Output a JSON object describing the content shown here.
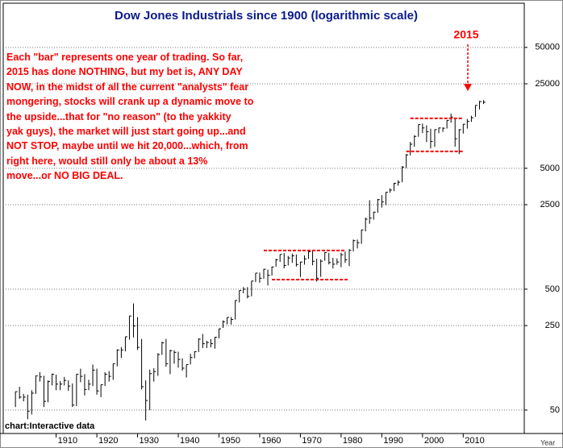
{
  "chart_data": {
    "type": "hlc",
    "title": "Dow Jones Industrials since 1900 (logarithmic scale)",
    "annotation": [
      "Each \"bar\" represents one year of trading. So far,",
      "2015 has done NOTHING, but my bet is, ANY DAY",
      "NOW, in the midst of all the current \"analysts\" fear",
      "mongering, stocks will crank up a dynamic move to",
      "the upside...that for \"no reason\" (to the yakkity",
      "yak guys), the market will just start going up...and",
      "NOT STOP, maybe until we hit 20,000...which, from",
      "right here, would still only be about a 13%",
      "move...or NO BIG DEAL."
    ],
    "arrow_label": "2015",
    "source": "chart:Interactive data",
    "x_label": "Year",
    "log_scale": true,
    "color": "#000000",
    "reference_color": "#ff0000",
    "xlim": [
      1897,
      2025
    ],
    "xticks": [
      1910,
      1920,
      1930,
      1940,
      1950,
      1960,
      1970,
      1980,
      1990,
      2000,
      2010
    ],
    "ylim": [
      32,
      116000
    ],
    "yticks": [
      50,
      250,
      500,
      2500,
      5000,
      25000,
      50000
    ],
    "x": [
      1900,
      1901,
      1902,
      1903,
      1904,
      1905,
      1906,
      1907,
      1908,
      1909,
      1910,
      1911,
      1912,
      1913,
      1914,
      1915,
      1916,
      1917,
      1918,
      1919,
      1920,
      1921,
      1922,
      1923,
      1924,
      1925,
      1926,
      1927,
      1928,
      1929,
      1930,
      1931,
      1932,
      1933,
      1934,
      1935,
      1936,
      1937,
      1938,
      1939,
      1940,
      1941,
      1942,
      1943,
      1944,
      1945,
      1946,
      1947,
      1948,
      1949,
      1950,
      1951,
      1952,
      1953,
      1954,
      1955,
      1956,
      1957,
      1958,
      1959,
      1960,
      1961,
      1962,
      1963,
      1964,
      1965,
      1966,
      1967,
      1968,
      1969,
      1970,
      1971,
      1972,
      1973,
      1974,
      1975,
      1976,
      1977,
      1978,
      1979,
      1980,
      1981,
      1982,
      1983,
      1984,
      1985,
      1986,
      1987,
      1988,
      1989,
      1990,
      1991,
      1992,
      1993,
      1994,
      1995,
      1996,
      1997,
      1998,
      1999,
      2000,
      2001,
      2002,
      2003,
      2004,
      2005,
      2006,
      2007,
      2008,
      2009,
      2010,
      2011,
      2012,
      2013,
      2014,
      2015
    ],
    "high": [
      71,
      78,
      68,
      67,
      73,
      96,
      103,
      96,
      88,
      100,
      98,
      87,
      94,
      88,
      83,
      99,
      110,
      99,
      89,
      119,
      110,
      81,
      103,
      105,
      121,
      159,
      166,
      202,
      300,
      381,
      294,
      194,
      88,
      108,
      111,
      148,
      184,
      194,
      158,
      156,
      152,
      134,
      119,
      146,
      153,
      196,
      213,
      187,
      193,
      201,
      236,
      276,
      292,
      294,
      404,
      488,
      521,
      520,
      584,
      679,
      685,
      735,
      726,
      767,
      891,
      969,
      995,
      943,
      985,
      968,
      842,
      951,
      1036,
      1052,
      892,
      882,
      1015,
      1000,
      908,
      898,
      1000,
      1024,
      1071,
      1287,
      1287,
      1553,
      1956,
      2722,
      2184,
      2791,
      2999,
      3169,
      3413,
      3794,
      3978,
      5216,
      6561,
      8259,
      9374,
      11497,
      11723,
      11337,
      10635,
      10454,
      10855,
      10940,
      12511,
      14165,
      13058,
      10549,
      11585,
      12810,
      13610,
      16577,
      18053,
      18312
    ],
    "low": [
      53,
      62,
      59,
      42,
      46,
      68,
      86,
      53,
      58,
      80,
      73,
      73,
      80,
      72,
      53,
      54,
      85,
      66,
      73,
      79,
      67,
      64,
      79,
      86,
      89,
      115,
      135,
      153,
      191,
      199,
      157,
      74,
      41,
      50,
      86,
      96,
      143,
      114,
      99,
      121,
      112,
      106,
      93,
      119,
      134,
      151,
      163,
      163,
      165,
      161,
      196,
      239,
      256,
      255,
      280,
      388,
      462,
      420,
      437,
      574,
      566,
      610,
      536,
      647,
      766,
      841,
      744,
      786,
      825,
      769,
      631,
      798,
      889,
      788,
      578,
      632,
      859,
      801,
      742,
      796,
      759,
      824,
      777,
      1027,
      1087,
      1185,
      1502,
      1739,
      1879,
      2145,
      2365,
      2470,
      3137,
      3242,
      3593,
      3832,
      5032,
      6392,
      7539,
      9120,
      9796,
      8236,
      7286,
      7524,
      9749,
      10012,
      10668,
      11940,
      7552,
      6547,
      9686,
      10655,
      12101,
      13329,
      15373,
      17000
    ],
    "close": [
      71,
      64,
      64,
      49,
      69,
      96,
      94,
      59,
      86,
      99,
      82,
      82,
      88,
      79,
      55,
      99,
      95,
      74,
      82,
      107,
      72,
      81,
      99,
      95,
      121,
      157,
      157,
      202,
      300,
      248,
      165,
      78,
      60,
      100,
      104,
      144,
      180,
      121,
      155,
      150,
      131,
      111,
      119,
      136,
      152,
      193,
      177,
      181,
      177,
      200,
      235,
      269,
      292,
      281,
      404,
      488,
      500,
      436,
      584,
      679,
      616,
      731,
      652,
      763,
      874,
      969,
      786,
      905,
      944,
      800,
      839,
      890,
      1020,
      851,
      616,
      852,
      1005,
      831,
      805,
      839,
      964,
      875,
      1047,
      1259,
      1212,
      1547,
      1896,
      1939,
      2169,
      2753,
      2634,
      3169,
      3301,
      3754,
      3834,
      5117,
      6448,
      7908,
      9181,
      11497,
      10787,
      10021,
      8342,
      10454,
      10783,
      10718,
      12463,
      13265,
      8776,
      10428,
      11578,
      12218,
      13104,
      16577,
      17823,
      17600
    ],
    "reference_lines": [
      {
        "value": 1045,
        "from": 1961,
        "to": 1981
      },
      {
        "value": 600,
        "from": 1963,
        "to": 1982
      },
      {
        "value": 12950,
        "from": 1997,
        "to": 2010
      },
      {
        "value": 6900,
        "from": 1996,
        "to": 2010
      }
    ]
  }
}
